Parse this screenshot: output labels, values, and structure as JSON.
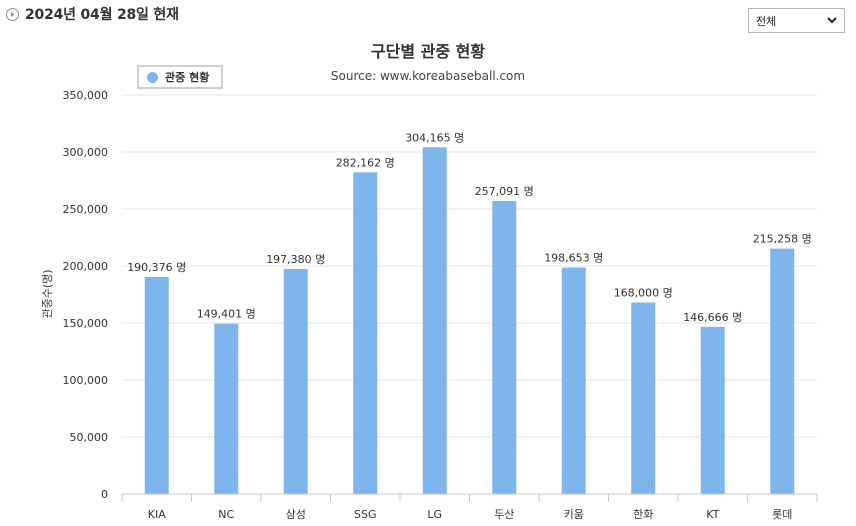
{
  "header": {
    "date_text": "2024년 04월 28일 현재",
    "filter": {
      "selected": "전체"
    }
  },
  "colors": {
    "bar": "#7eb5ed",
    "grid": "#e6e6e6",
    "axis": "#c8c8c8",
    "text": "#333333"
  },
  "chart_data": {
    "type": "bar",
    "title": "구단별 관중 현황",
    "subtitle": "Source: www.koreabaseball.com",
    "xlabel": "",
    "ylabel": "관중수(명)",
    "ylim": [
      0,
      350000
    ],
    "yticks": [
      0,
      50000,
      100000,
      150000,
      200000,
      250000,
      300000,
      350000
    ],
    "ytick_labels": [
      "0",
      "50,000",
      "100,000",
      "150,000",
      "200,000",
      "250,000",
      "300,000",
      "350,000"
    ],
    "legend": {
      "entries": [
        "관중 현황"
      ],
      "position": "top-left"
    },
    "grid": true,
    "categories": [
      "KIA",
      "NC",
      "삼성",
      "SSG",
      "LG",
      "두산",
      "키움",
      "한화",
      "KT",
      "롯데"
    ],
    "series": [
      {
        "name": "관중 현황",
        "values": [
          190376,
          149401,
          197380,
          282162,
          304165,
          257091,
          198653,
          168000,
          146666,
          215258
        ],
        "labels": [
          "190,376 명",
          "149,401 명",
          "197,380 명",
          "282,162 명",
          "304,165 명",
          "257,091 명",
          "198,653 명",
          "168,000 명",
          "146,666 명",
          "215,258 명"
        ]
      }
    ]
  }
}
